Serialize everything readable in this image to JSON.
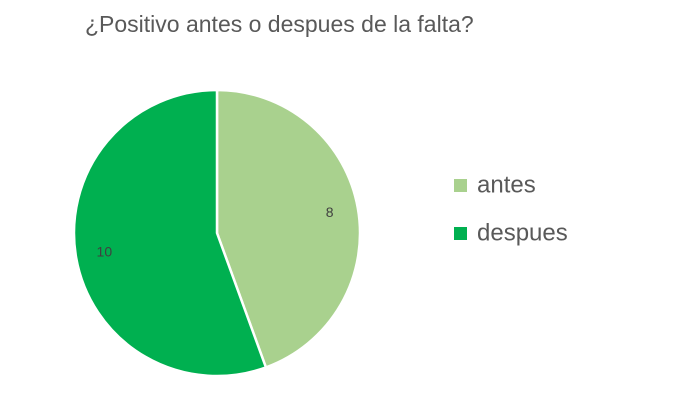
{
  "chart_data": {
    "type": "pie",
    "title": "¿Positivo antes o despues de la falta?",
    "categories": [
      "antes",
      "despues"
    ],
    "values": [
      8,
      10
    ],
    "colors": [
      "#a9d18e",
      "#00b050"
    ],
    "legend": "right"
  }
}
